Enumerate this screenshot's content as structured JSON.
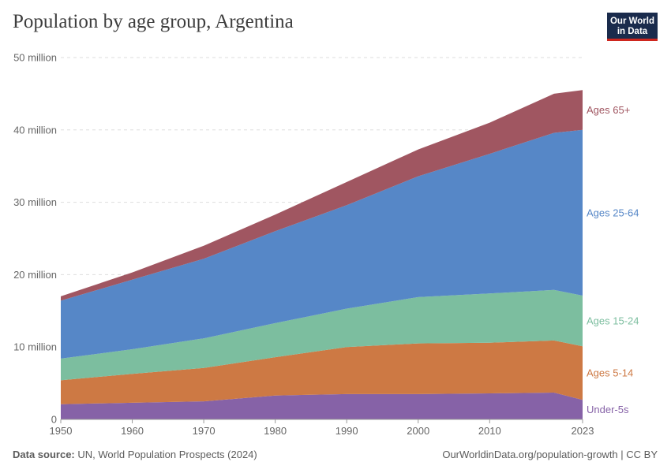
{
  "header": {
    "title": "Population by age group, Argentina",
    "logo_line1": "Our World",
    "logo_line2": "in Data"
  },
  "footer": {
    "source_label": "Data source:",
    "source_text": "UN, World Population Prospects (2024)",
    "link_text": "OurWorldinData.org/population-growth | CC BY"
  },
  "colors": {
    "under5": "#8662a7",
    "age5_14": "#cd7944",
    "age15_24": "#7cbe9f",
    "age25_64": "#5687c7",
    "age65plus": "#a05661"
  },
  "chart_data": {
    "type": "area",
    "stacked": true,
    "title": "Population by age group, Argentina",
    "xlabel": "",
    "ylabel": "",
    "xlim": [
      1950,
      2023
    ],
    "ylim": [
      0,
      50000000
    ],
    "y_ticks": [
      {
        "value": 0,
        "label": "0"
      },
      {
        "value": 10000000,
        "label": "10 million"
      },
      {
        "value": 20000000,
        "label": "20 million"
      },
      {
        "value": 30000000,
        "label": "30 million"
      },
      {
        "value": 40000000,
        "label": "40 million"
      },
      {
        "value": 50000000,
        "label": "50 million"
      }
    ],
    "x_ticks": [
      {
        "value": 1950,
        "label": "1950"
      },
      {
        "value": 1960,
        "label": "1960"
      },
      {
        "value": 1970,
        "label": "1970"
      },
      {
        "value": 1980,
        "label": "1980"
      },
      {
        "value": 1990,
        "label": "1990"
      },
      {
        "value": 2000,
        "label": "2000"
      },
      {
        "value": 2010,
        "label": "2010"
      },
      {
        "value": 2023,
        "label": "2023"
      }
    ],
    "x": [
      1950,
      1960,
      1970,
      1980,
      1990,
      2000,
      2010,
      2019,
      2023
    ],
    "series": [
      {
        "name": "Under-5s",
        "key": "under5",
        "values": [
          2100000,
          2300000,
          2500000,
          3300000,
          3500000,
          3500000,
          3600000,
          3700000,
          2700000
        ]
      },
      {
        "name": "Ages 5-14",
        "key": "age5_14",
        "values": [
          3300000,
          4000000,
          4600000,
          5300000,
          6500000,
          7000000,
          7000000,
          7200000,
          7400000
        ]
      },
      {
        "name": "Ages 15-24",
        "key": "age15_24",
        "values": [
          3000000,
          3400000,
          4100000,
          4700000,
          5300000,
          6400000,
          6800000,
          7000000,
          7000000
        ]
      },
      {
        "name": "Ages 25-64",
        "key": "age25_64",
        "values": [
          8000000,
          9600000,
          11000000,
          12700000,
          14300000,
          16700000,
          19300000,
          21700000,
          22900000
        ]
      },
      {
        "name": "Ages 65+",
        "key": "age65plus",
        "values": [
          600000,
          1000000,
          1800000,
          2300000,
          3200000,
          3700000,
          4300000,
          5400000,
          5500000
        ]
      }
    ]
  }
}
